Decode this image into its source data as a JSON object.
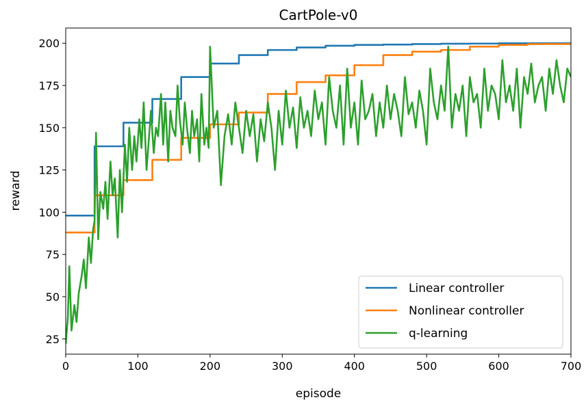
{
  "chart_data": {
    "type": "line",
    "title": "CartPole-v0",
    "xlabel": "episode",
    "ylabel": "reward",
    "xlim": [
      0,
      700
    ],
    "ylim": [
      16,
      209
    ],
    "xticks": [
      0,
      100,
      200,
      300,
      400,
      500,
      600,
      700
    ],
    "yticks": [
      25,
      50,
      75,
      100,
      125,
      150,
      175,
      200
    ],
    "legend_position": "lower-right",
    "grid": false,
    "series": [
      {
        "name": "Linear controller",
        "color": "#1f77b4",
        "interpolation": "step",
        "x": [
          0,
          38,
          40,
          80,
          120,
          160,
          200,
          240,
          280,
          320,
          360,
          400,
          440,
          480,
          520,
          560,
          600,
          640,
          700
        ],
        "y": [
          98,
          98,
          139,
          153,
          167,
          180,
          188,
          193,
          196,
          197.5,
          198.5,
          199,
          199.2,
          199.5,
          199.7,
          199.8,
          200,
          200,
          200
        ]
      },
      {
        "name": "Nonlinear controller",
        "color": "#ff7f0e",
        "interpolation": "step",
        "x": [
          0,
          38,
          40,
          80,
          120,
          160,
          200,
          240,
          280,
          320,
          360,
          400,
          440,
          480,
          520,
          560,
          600,
          640,
          700
        ],
        "y": [
          88,
          88,
          110,
          119,
          131,
          144,
          152,
          159,
          170,
          177,
          181,
          187,
          193,
          195,
          196,
          198,
          199,
          199.5,
          200
        ]
      },
      {
        "name": "q-learning",
        "color": "#2ca02c",
        "interpolation": "linear",
        "x": [
          0,
          3,
          5,
          8,
          12,
          15,
          18,
          22,
          25,
          28,
          32,
          35,
          38,
          40,
          42,
          45,
          48,
          52,
          55,
          58,
          62,
          65,
          68,
          72,
          75,
          78,
          82,
          85,
          88,
          92,
          95,
          98,
          102,
          105,
          108,
          112,
          115,
          118,
          122,
          125,
          128,
          132,
          135,
          138,
          142,
          145,
          148,
          152,
          155,
          158,
          162,
          165,
          168,
          172,
          175,
          178,
          182,
          185,
          188,
          192,
          195,
          198,
          200,
          205,
          210,
          215,
          220,
          225,
          230,
          235,
          240,
          245,
          250,
          255,
          260,
          265,
          270,
          275,
          280,
          285,
          290,
          295,
          300,
          305,
          310,
          315,
          320,
          325,
          330,
          335,
          340,
          345,
          350,
          355,
          360,
          365,
          370,
          375,
          380,
          385,
          390,
          395,
          400,
          405,
          410,
          415,
          420,
          425,
          430,
          435,
          440,
          445,
          450,
          455,
          460,
          465,
          470,
          475,
          480,
          485,
          490,
          495,
          500,
          505,
          510,
          515,
          520,
          525,
          530,
          535,
          540,
          545,
          550,
          555,
          560,
          565,
          570,
          575,
          580,
          585,
          590,
          595,
          600,
          605,
          610,
          615,
          620,
          625,
          630,
          635,
          640,
          645,
          650,
          655,
          660,
          665,
          670,
          675,
          680,
          685,
          690,
          695,
          700
        ],
        "y": [
          22,
          38,
          68,
          30,
          45,
          35,
          52,
          62,
          72,
          55,
          85,
          70,
          90,
          95,
          147,
          84,
          112,
          102,
          118,
          96,
          130,
          110,
          120,
          85,
          125,
          100,
          140,
          118,
          150,
          125,
          145,
          130,
          155,
          138,
          165,
          125,
          142,
          160,
          135,
          150,
          145,
          170,
          140,
          165,
          130,
          160,
          150,
          145,
          175,
          155,
          140,
          165,
          150,
          135,
          160,
          145,
          155,
          130,
          170,
          140,
          150,
          138,
          198,
          150,
          160,
          116,
          145,
          158,
          140,
          165,
          150,
          135,
          160,
          145,
          158,
          130,
          155,
          142,
          165,
          150,
          125,
          160,
          140,
          172,
          150,
          162,
          138,
          168,
          150,
          160,
          145,
          172,
          155,
          165,
          140,
          180,
          160,
          150,
          175,
          140,
          185,
          150,
          165,
          140,
          178,
          155,
          160,
          170,
          145,
          165,
          150,
          175,
          155,
          170,
          160,
          145,
          180,
          158,
          165,
          150,
          172,
          160,
          140,
          185,
          165,
          155,
          175,
          160,
          198,
          150,
          170,
          160,
          175,
          145,
          180,
          165,
          170,
          150,
          185,
          160,
          175,
          170,
          155,
          190,
          165,
          175,
          160,
          185,
          150,
          180,
          170,
          188,
          165,
          175,
          180,
          160,
          185,
          170,
          190,
          175,
          165,
          185,
          180
        ]
      }
    ]
  }
}
